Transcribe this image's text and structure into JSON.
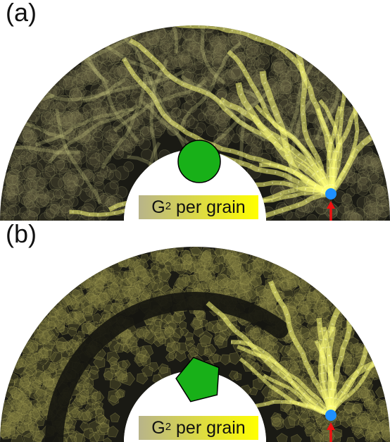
{
  "panels": [
    {
      "id": "a",
      "label": "(a)",
      "grain_shape": "circle",
      "grain_color": "#18b018",
      "colorbar": {
        "base": "G",
        "exponent": "2",
        "text": " per grain",
        "gradient": [
          "#b8b48a",
          "#ffff00"
        ]
      },
      "source_marker_color": "#1e90ff",
      "arrow_color": "#ee1111"
    },
    {
      "id": "b",
      "label": "(b)",
      "grain_shape": "pentagon",
      "grain_color": "#18b018",
      "colorbar": {
        "base": "G",
        "exponent": "2",
        "text": " per grain",
        "gradient": [
          "#b8b48a",
          "#ffff00"
        ]
      },
      "source_marker_color": "#1e90ff",
      "arrow_color": "#ee1111"
    }
  ]
}
